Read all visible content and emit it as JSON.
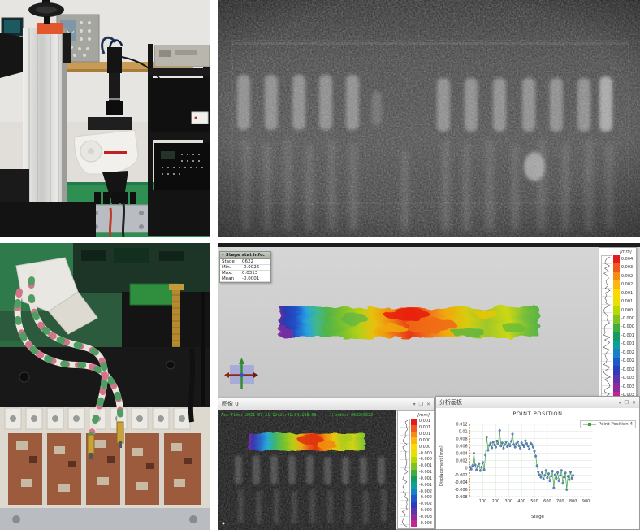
{
  "software": {
    "viewport": {
      "stage_stat": {
        "title": "Stage stat info.",
        "rows": [
          {
            "label": "Stage",
            "value": "0622"
          },
          {
            "label": "Min.",
            "value": "-0.0026"
          },
          {
            "label": "Max.",
            "value": "0.0313"
          },
          {
            "label": "Mean",
            "value": "-0.0001"
          }
        ]
      },
      "colorbar": {
        "unit": "[mm]",
        "labels": [
          "0.004",
          "0.003",
          "0.002",
          "0.002",
          "0.001",
          "0.001",
          "0.000",
          "-0.000",
          "-0.000",
          "-0.001",
          "-0.001",
          "-0.002",
          "-0.002",
          "-0.002",
          "-0.003",
          "-0.003",
          "-0.003"
        ],
        "colors": [
          "#e31d1d",
          "#ef5a1a",
          "#f68c16",
          "#fbb60f",
          "#ffd800",
          "#e7e000",
          "#b8d800",
          "#7fc41e",
          "#3fae3f",
          "#159a60",
          "#0d9e9e",
          "#1582c8",
          "#1b5ac8",
          "#2b3db8",
          "#5c35aa",
          "#8f2a9e",
          "#c22690"
        ]
      }
    },
    "image_window": {
      "title": "图像 0",
      "controls": [
        "▾",
        "❐",
        "✕"
      ],
      "overlay_left": "Acc Time: 2021-07-21 12:21:41.04/198.00",
      "overlay_right": "(Index: 0622/0622)",
      "colorbar": {
        "unit": "[mm]",
        "labels": [
          "0.001",
          "0.001",
          "0.001",
          "0.000",
          "0.000",
          "-0.000",
          "-0.000",
          "-0.001",
          "-0.001",
          "-0.001",
          "-0.001",
          "-0.002",
          "-0.002",
          "-0.002",
          "-0.002",
          "-0.003",
          "-0.003"
        ],
        "colors": [
          "#e31d1d",
          "#ef5a1a",
          "#f68c16",
          "#fbb60f",
          "#ffd800",
          "#e7e000",
          "#b8d800",
          "#7fc41e",
          "#3fae3f",
          "#159a60",
          "#0d9e9e",
          "#1582c8",
          "#1b5ac8",
          "#2b3db8",
          "#5c35aa",
          "#8f2a9e",
          "#c22690"
        ]
      }
    },
    "chart_window": {
      "title": "分析画板",
      "controls": [
        "▾",
        "❐",
        "✕"
      ]
    }
  },
  "chart_data": {
    "type": "scatter",
    "title": "POINT POSITION",
    "xlabel": "Stage",
    "ylabel": "Displacement [mm]",
    "legend": [
      {
        "label": "Point Position 4",
        "color": "#3aa33a"
      }
    ],
    "legend_position": "top-right",
    "grid": true,
    "xlim": [
      0,
      950
    ],
    "ylim": [
      -0.008,
      0.012
    ],
    "xticks": [
      100,
      200,
      300,
      400,
      500,
      600,
      700,
      800,
      900
    ],
    "yticks": [
      "0.012",
      "0.01",
      "0.008",
      "0.006",
      "0.004",
      "0.002",
      "0",
      "-0.002",
      "-0.004",
      "-0.006",
      "-0.008"
    ],
    "series": [
      {
        "name": "Point Position 4",
        "line_color": "#3aa33a",
        "marker_color": "#5b7fd0",
        "marker_edge": "#27408b",
        "points": [
          [
            0,
            0.0002
          ],
          [
            10,
            -0.0004
          ],
          [
            20,
            0.0006
          ],
          [
            30,
            0.004
          ],
          [
            40,
            0.0008
          ],
          [
            50,
            -0.0006
          ],
          [
            60,
            0.0004
          ],
          [
            70,
            0.0012
          ],
          [
            80,
            -0.0008
          ],
          [
            90,
            0.0002
          ],
          [
            100,
            0.0015
          ],
          [
            110,
            -0.0005
          ],
          [
            120,
            0.0035
          ],
          [
            130,
            0.0085
          ],
          [
            140,
            0.0048
          ],
          [
            150,
            0.0062
          ],
          [
            160,
            0.0068
          ],
          [
            170,
            0.0055
          ],
          [
            180,
            0.0071
          ],
          [
            190,
            0.0063
          ],
          [
            200,
            0.0057
          ],
          [
            210,
            0.0074
          ],
          [
            220,
            0.0066
          ],
          [
            230,
            0.0103
          ],
          [
            240,
            0.006
          ],
          [
            250,
            0.0069
          ],
          [
            260,
            0.0054
          ],
          [
            270,
            0.0064
          ],
          [
            280,
            0.0072
          ],
          [
            290,
            0.0058
          ],
          [
            300,
            0.0066
          ],
          [
            310,
            0.006
          ],
          [
            320,
            0.0073
          ],
          [
            330,
            0.0093
          ],
          [
            340,
            0.0064
          ],
          [
            350,
            0.0057
          ],
          [
            360,
            0.0067
          ],
          [
            370,
            0.0072
          ],
          [
            380,
            0.0061
          ],
          [
            390,
            0.0054
          ],
          [
            400,
            0.0069
          ],
          [
            410,
            0.0063
          ],
          [
            420,
            0.0058
          ],
          [
            430,
            0.0075
          ],
          [
            440,
            0.0067
          ],
          [
            450,
            0.006
          ],
          [
            460,
            0.0051
          ],
          [
            470,
            0.0068
          ],
          [
            480,
            0.0064
          ],
          [
            490,
            0.0057
          ],
          [
            500,
            0.0046
          ],
          [
            510,
            0.0032
          ],
          [
            520,
            0.0006
          ],
          [
            530,
            -0.0011
          ],
          [
            540,
            -0.0019
          ],
          [
            550,
            -0.0026
          ],
          [
            560,
            -0.0013
          ],
          [
            570,
            -0.0031
          ],
          [
            580,
            -0.0021
          ],
          [
            590,
            -0.0007
          ],
          [
            600,
            -0.0027
          ],
          [
            610,
            -0.0016
          ],
          [
            620,
            -0.0036
          ],
          [
            630,
            -0.0023
          ],
          [
            640,
            -0.0009
          ],
          [
            650,
            -0.0055
          ],
          [
            660,
            -0.0019
          ],
          [
            670,
            -0.0029
          ],
          [
            680,
            -0.0013
          ],
          [
            690,
            -0.0036
          ],
          [
            700,
            -0.0021
          ],
          [
            710,
            -0.0007
          ],
          [
            720,
            -0.0043
          ],
          [
            730,
            -0.0026
          ],
          [
            740,
            -0.0014
          ],
          [
            750,
            -0.006
          ],
          [
            760,
            -0.0023
          ],
          [
            770,
            -0.0033
          ],
          [
            780,
            -0.0011
          ],
          [
            790,
            -0.0029
          ],
          [
            800,
            -0.0021
          ]
        ]
      }
    ]
  }
}
